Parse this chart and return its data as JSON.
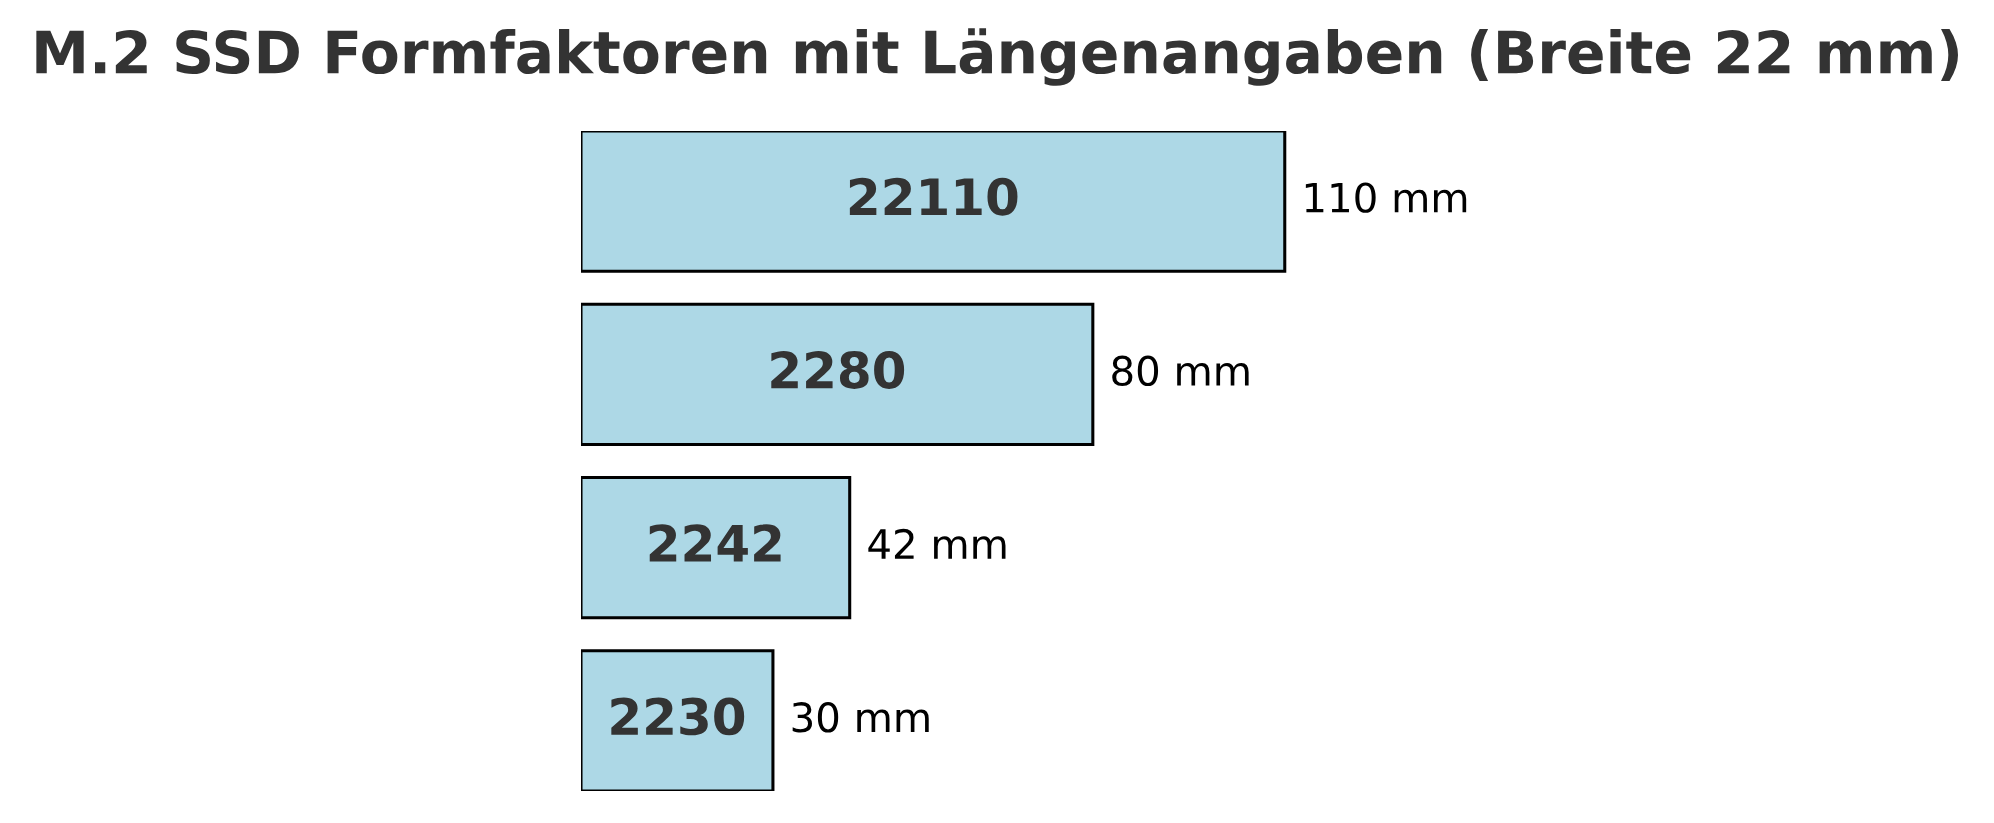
{
  "chart_data": {
    "type": "bar",
    "orientation": "horizontal",
    "title": "M.2 SSD Formfaktoren mit Längenangaben (Breite 22 mm)",
    "categories": [
      "22110",
      "2280",
      "2242",
      "2230"
    ],
    "values": [
      110,
      80,
      42,
      30
    ],
    "value_labels": [
      "110 mm",
      "80 mm",
      "42 mm",
      "30 mm"
    ],
    "color": "#add8e6",
    "tick_labels": false
  }
}
